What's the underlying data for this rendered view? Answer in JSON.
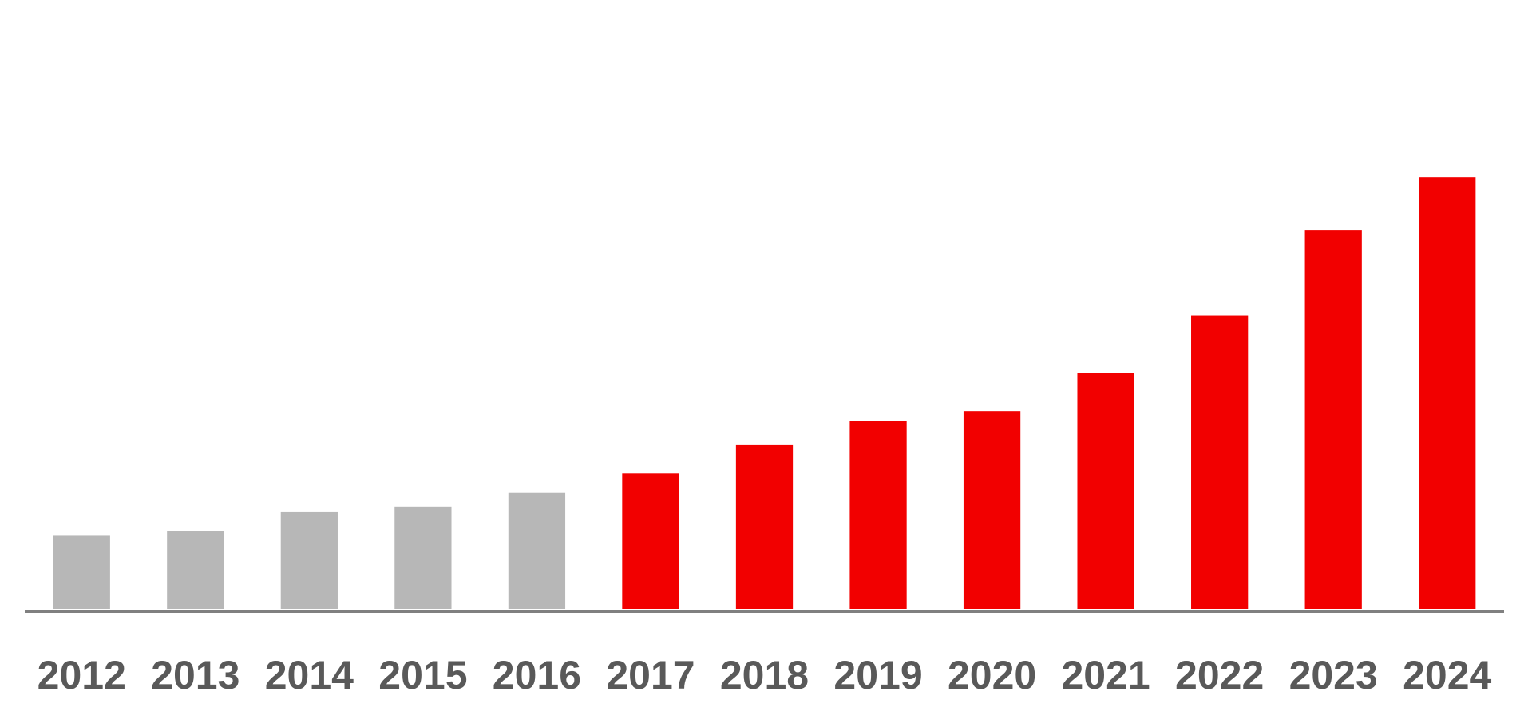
{
  "chart_data": {
    "type": "bar",
    "categories": [
      "2012",
      "2013",
      "2014",
      "2015",
      "2016",
      "2017",
      "2018",
      "2019",
      "2020",
      "2021",
      "2022",
      "2023",
      "2024"
    ],
    "values": [
      75,
      80,
      100,
      105,
      119,
      139,
      168,
      193,
      203,
      242,
      301,
      389,
      443
    ],
    "colors": [
      "#b7b7b7",
      "#b7b7b7",
      "#b7b7b7",
      "#b7b7b7",
      "#b7b7b7",
      "#f20000",
      "#f20000",
      "#f20000",
      "#f20000",
      "#f20000",
      "#f20000",
      "#f20000",
      "#f20000"
    ],
    "ylim": [
      0,
      625
    ]
  }
}
